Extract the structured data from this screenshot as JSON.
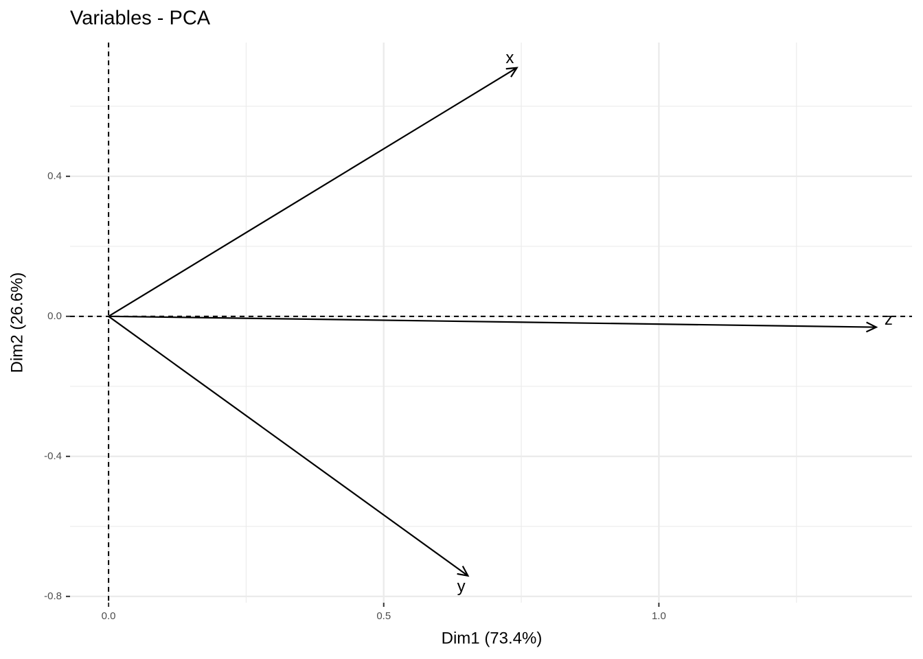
{
  "chart_data": {
    "type": "arrow",
    "title": "Variables - PCA",
    "x_label": "Dim1 (73.4%)",
    "y_label": "Dim2 (26.6%)",
    "categories": [
      "x",
      "y",
      "z"
    ],
    "x": [
      0.742,
      0.653,
      1.395
    ],
    "values": [
      0.71,
      -0.741,
      -0.031
    ],
    "color": "#000000",
    "xlim": [
      -0.07,
      1.46
    ],
    "ylim": [
      -0.818,
      0.782
    ],
    "xticks": [
      {
        "value": 0,
        "label": "0.0"
      },
      0.5,
      {
        "value": 1,
        "label": "1.0"
      }
    ],
    "yticks": [
      -0.8,
      -0.4,
      {
        "value": 0,
        "label": "0.0"
      },
      0.4
    ],
    "xminor": [
      0.25,
      0.75,
      1.25
    ],
    "yminor": [
      -0.6,
      -0.2,
      0.2,
      0.6
    ],
    "grid": true,
    "hline": 0,
    "vline": 0
  }
}
